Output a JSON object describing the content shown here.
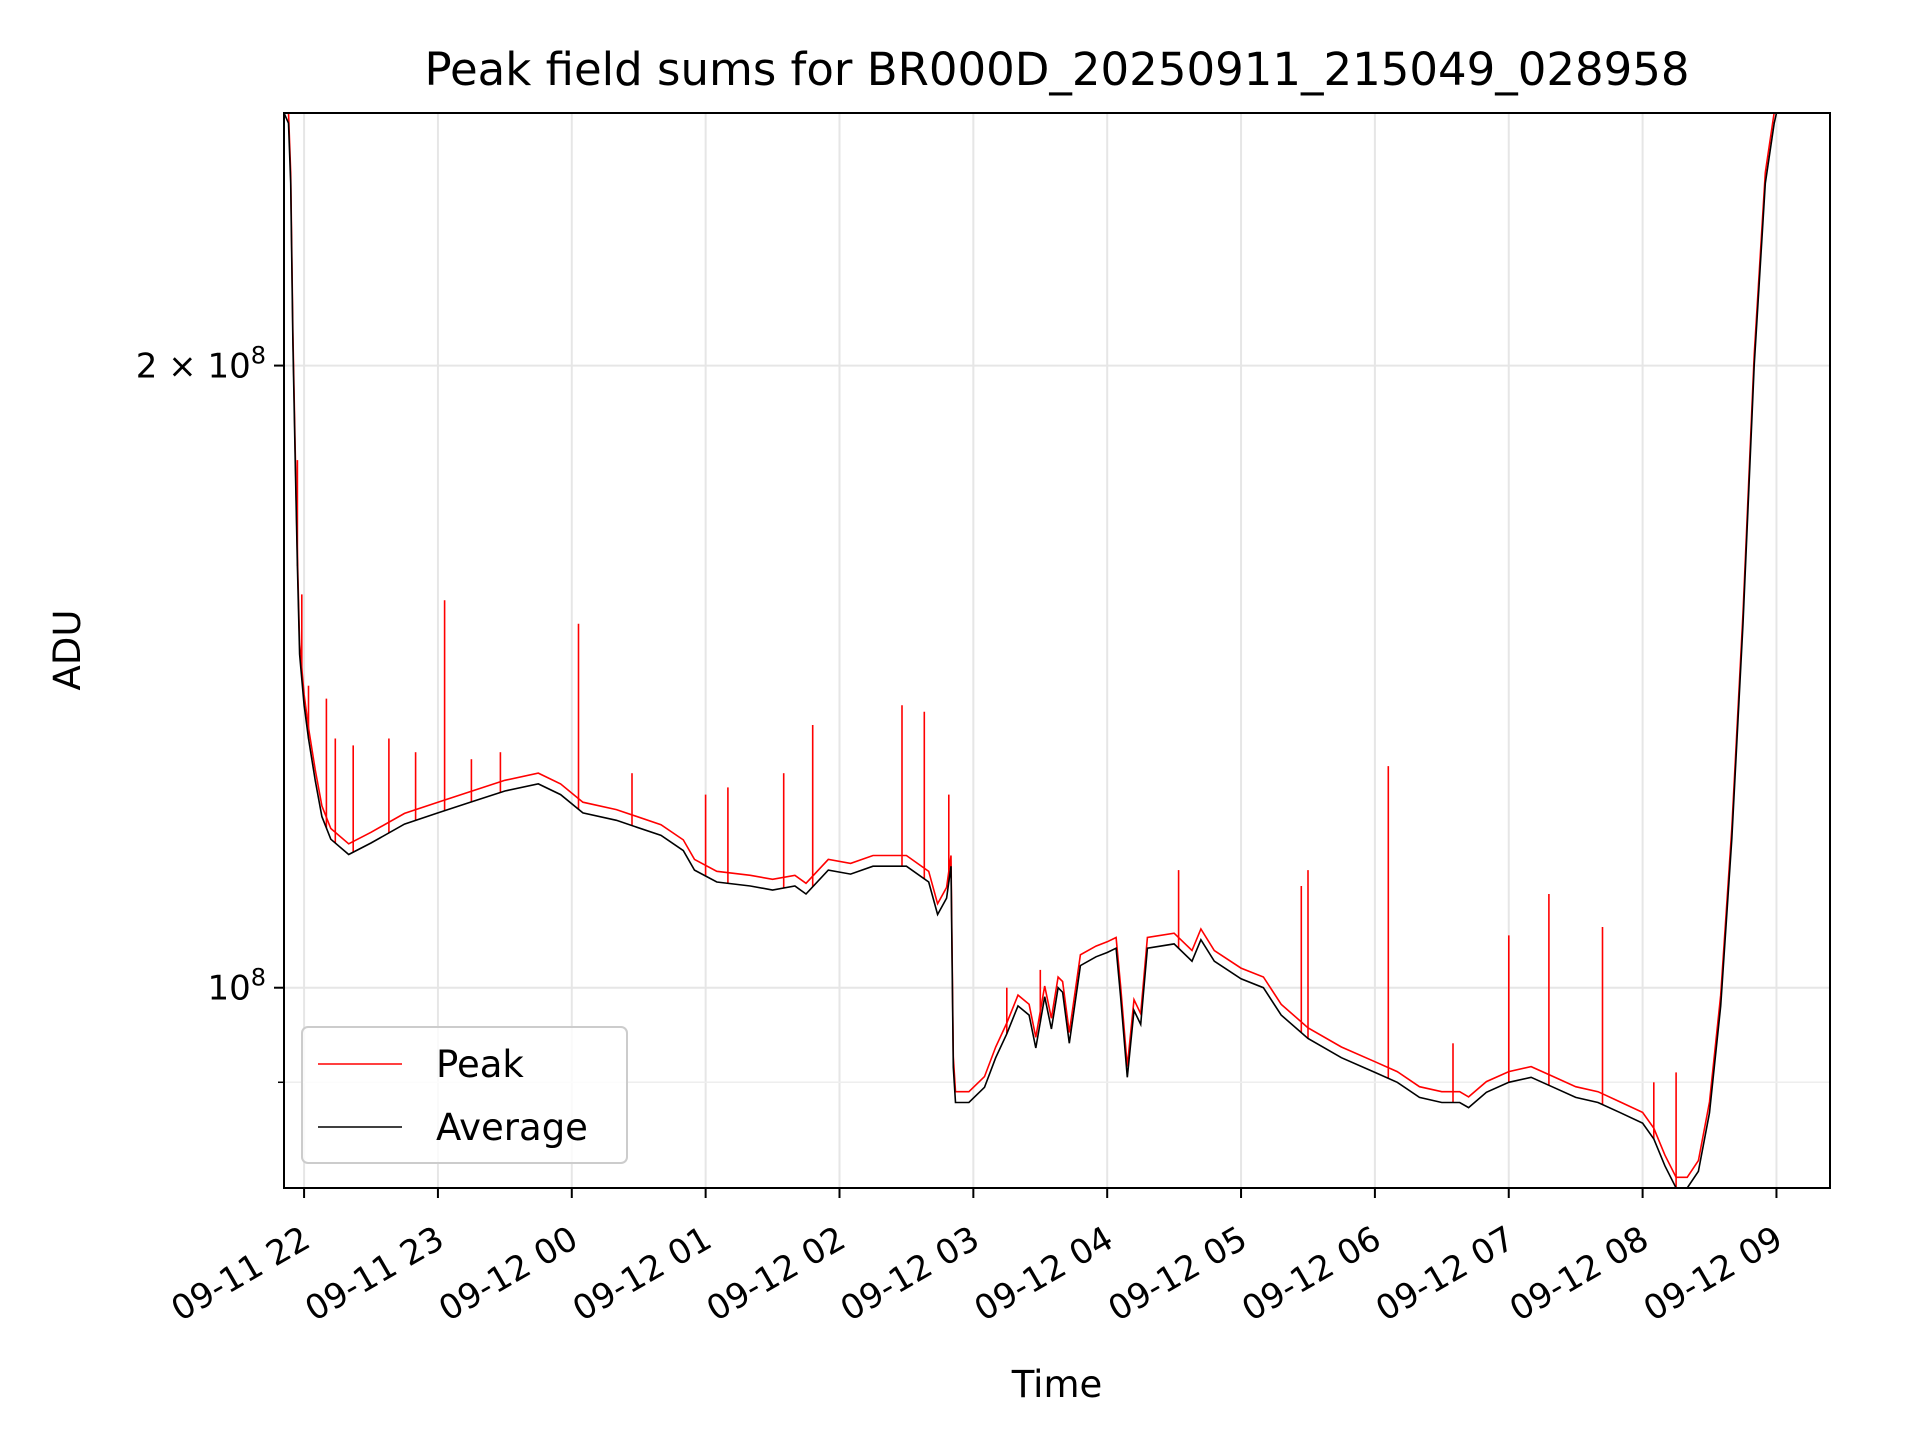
{
  "chart_data": {
    "type": "line",
    "title": "Peak field sums for BR000D_20250911_215049_028958",
    "xlabel": "Time",
    "ylabel": "ADU",
    "yscale": "log",
    "ylim": [
      80000000,
      265000000
    ],
    "xlim": [
      "2025-09-11 21:51",
      "2025-09-12 09:24"
    ],
    "grid": true,
    "legend_position": "lower-left",
    "x_ticks": [
      {
        "t": "2025-09-11 22:00",
        "label": "09-11 22"
      },
      {
        "t": "2025-09-11 23:00",
        "label": "09-11 23"
      },
      {
        "t": "2025-09-12 00:00",
        "label": "09-12 00"
      },
      {
        "t": "2025-09-12 01:00",
        "label": "09-12 01"
      },
      {
        "t": "2025-09-12 02:00",
        "label": "09-12 02"
      },
      {
        "t": "2025-09-12 03:00",
        "label": "09-12 03"
      },
      {
        "t": "2025-09-12 04:00",
        "label": "09-12 04"
      },
      {
        "t": "2025-09-12 05:00",
        "label": "09-12 05"
      },
      {
        "t": "2025-09-12 06:00",
        "label": "09-12 06"
      },
      {
        "t": "2025-09-12 07:00",
        "label": "09-12 07"
      },
      {
        "t": "2025-09-12 08:00",
        "label": "09-12 08"
      },
      {
        "t": "2025-09-12 09:00",
        "label": "09-12 09"
      }
    ],
    "y_ticks_major": [
      {
        "value": 100000000,
        "label_base": "10",
        "label_exp": "8",
        "label_coef": ""
      },
      {
        "value": 200000000,
        "label_base": "2 × 10",
        "label_exp": "8",
        "label_coef": ""
      }
    ],
    "y_ticks_minor": [
      90000000
    ],
    "series": [
      {
        "name": "Average",
        "color": "#000000",
        "points": [
          [
            "2025-09-11 21:51",
            265000000
          ],
          [
            "2025-09-11 21:53",
            262000000
          ],
          [
            "2025-09-11 21:54",
            245000000
          ],
          [
            "2025-09-11 21:55",
            205000000
          ],
          [
            "2025-09-11 21:56",
            180000000
          ],
          [
            "2025-09-11 21:57",
            160000000
          ],
          [
            "2025-09-11 21:58",
            145000000
          ],
          [
            "2025-09-11 22:00",
            137000000
          ],
          [
            "2025-09-11 22:02",
            132000000
          ],
          [
            "2025-09-11 22:05",
            126000000
          ],
          [
            "2025-09-11 22:08",
            121000000
          ],
          [
            "2025-09-11 22:12",
            118000000
          ],
          [
            "2025-09-11 22:20",
            116000000
          ],
          [
            "2025-09-11 22:30",
            117500000
          ],
          [
            "2025-09-11 22:45",
            120000000
          ],
          [
            "2025-09-11 23:00",
            121500000
          ],
          [
            "2025-09-11 23:15",
            123000000
          ],
          [
            "2025-09-11 23:30",
            124500000
          ],
          [
            "2025-09-11 23:45",
            125500000
          ],
          [
            "2025-09-11 23:55",
            124000000
          ],
          [
            "2025-09-12 00:05",
            121500000
          ],
          [
            "2025-09-12 00:20",
            120500000
          ],
          [
            "2025-09-12 00:40",
            118500000
          ],
          [
            "2025-09-12 00:50",
            116500000
          ],
          [
            "2025-09-12 00:55",
            114000000
          ],
          [
            "2025-09-12 01:05",
            112500000
          ],
          [
            "2025-09-12 01:20",
            112000000
          ],
          [
            "2025-09-12 01:30",
            111500000
          ],
          [
            "2025-09-12 01:40",
            112000000
          ],
          [
            "2025-09-12 01:45",
            111000000
          ],
          [
            "2025-09-12 01:55",
            114000000
          ],
          [
            "2025-09-12 02:05",
            113500000
          ],
          [
            "2025-09-12 02:15",
            114500000
          ],
          [
            "2025-09-12 02:30",
            114500000
          ],
          [
            "2025-09-12 02:40",
            112500000
          ],
          [
            "2025-09-12 02:44",
            108500000
          ],
          [
            "2025-09-12 02:48",
            110500000
          ],
          [
            "2025-09-12 02:50",
            114500000
          ],
          [
            "2025-09-12 02:51",
            91500000
          ],
          [
            "2025-09-12 02:52",
            88000000
          ],
          [
            "2025-09-12 02:58",
            88000000
          ],
          [
            "2025-09-12 03:05",
            89500000
          ],
          [
            "2025-09-12 03:10",
            92500000
          ],
          [
            "2025-09-12 03:15",
            95000000
          ],
          [
            "2025-09-12 03:20",
            98000000
          ],
          [
            "2025-09-12 03:25",
            97000000
          ],
          [
            "2025-09-12 03:28",
            93500000
          ],
          [
            "2025-09-12 03:32",
            99000000
          ],
          [
            "2025-09-12 03:35",
            95500000
          ],
          [
            "2025-09-12 03:38",
            100000000
          ],
          [
            "2025-09-12 03:40",
            99500000
          ],
          [
            "2025-09-12 03:43",
            94000000
          ],
          [
            "2025-09-12 03:48",
            102500000
          ],
          [
            "2025-09-12 03:55",
            103500000
          ],
          [
            "2025-09-12 04:00",
            104000000
          ],
          [
            "2025-09-12 04:04",
            104500000
          ],
          [
            "2025-09-12 04:06",
            99000000
          ],
          [
            "2025-09-12 04:09",
            90500000
          ],
          [
            "2025-09-12 04:12",
            97500000
          ],
          [
            "2025-09-12 04:15",
            96000000
          ],
          [
            "2025-09-12 04:18",
            104500000
          ],
          [
            "2025-09-12 04:30",
            105000000
          ],
          [
            "2025-09-12 04:38",
            103000000
          ],
          [
            "2025-09-12 04:42",
            105500000
          ],
          [
            "2025-09-12 04:48",
            103000000
          ],
          [
            "2025-09-12 05:00",
            101000000
          ],
          [
            "2025-09-12 05:10",
            100000000
          ],
          [
            "2025-09-12 05:18",
            97000000
          ],
          [
            "2025-09-12 05:30",
            94500000
          ],
          [
            "2025-09-12 05:45",
            92500000
          ],
          [
            "2025-09-12 06:00",
            91000000
          ],
          [
            "2025-09-12 06:10",
            90000000
          ],
          [
            "2025-09-12 06:20",
            88500000
          ],
          [
            "2025-09-12 06:30",
            88000000
          ],
          [
            "2025-09-12 06:38",
            88000000
          ],
          [
            "2025-09-12 06:42",
            87500000
          ],
          [
            "2025-09-12 06:50",
            89000000
          ],
          [
            "2025-09-12 07:00",
            90000000
          ],
          [
            "2025-09-12 07:10",
            90500000
          ],
          [
            "2025-09-12 07:20",
            89500000
          ],
          [
            "2025-09-12 07:30",
            88500000
          ],
          [
            "2025-09-12 07:40",
            88000000
          ],
          [
            "2025-09-12 07:50",
            87000000
          ],
          [
            "2025-09-12 08:00",
            86000000
          ],
          [
            "2025-09-12 08:05",
            84500000
          ],
          [
            "2025-09-12 08:10",
            82000000
          ],
          [
            "2025-09-12 08:15",
            80000000
          ],
          [
            "2025-09-12 08:20",
            80000000
          ],
          [
            "2025-09-12 08:25",
            81500000
          ],
          [
            "2025-09-12 08:30",
            87000000
          ],
          [
            "2025-09-12 08:35",
            98000000
          ],
          [
            "2025-09-12 08:40",
            118000000
          ],
          [
            "2025-09-12 08:45",
            150000000
          ],
          [
            "2025-09-12 08:50",
            200000000
          ],
          [
            "2025-09-12 08:55",
            245000000
          ],
          [
            "2025-09-12 08:59",
            262000000
          ],
          [
            "2025-09-12 09:00",
            265000000
          ]
        ]
      },
      {
        "name": "Peak",
        "color": "#ff0000",
        "spikes": [
          [
            "2025-09-11 21:57",
            180000000
          ],
          [
            "2025-09-11 21:59",
            155000000
          ],
          [
            "2025-09-11 22:02",
            140000000
          ],
          [
            "2025-09-11 22:10",
            138000000
          ],
          [
            "2025-09-11 22:14",
            132000000
          ],
          [
            "2025-09-11 22:22",
            131000000
          ],
          [
            "2025-09-11 22:38",
            132000000
          ],
          [
            "2025-09-11 22:50",
            130000000
          ],
          [
            "2025-09-11 23:03",
            154000000
          ],
          [
            "2025-09-11 23:15",
            129000000
          ],
          [
            "2025-09-11 23:28",
            130000000
          ],
          [
            "2025-09-12 00:03",
            150000000
          ],
          [
            "2025-09-12 00:27",
            127000000
          ],
          [
            "2025-09-12 01:00",
            124000000
          ],
          [
            "2025-09-12 01:10",
            125000000
          ],
          [
            "2025-09-12 01:35",
            127000000
          ],
          [
            "2025-09-12 01:48",
            134000000
          ],
          [
            "2025-09-12 02:28",
            137000000
          ],
          [
            "2025-09-12 02:38",
            136000000
          ],
          [
            "2025-09-12 02:49",
            124000000
          ],
          [
            "2025-09-12 03:15",
            100000000
          ],
          [
            "2025-09-12 03:30",
            102000000
          ],
          [
            "2025-09-12 04:32",
            114000000
          ],
          [
            "2025-09-12 05:27",
            112000000
          ],
          [
            "2025-09-12 05:30",
            114000000
          ],
          [
            "2025-09-12 06:06",
            128000000
          ],
          [
            "2025-09-12 06:35",
            94000000
          ],
          [
            "2025-09-12 07:00",
            106000000
          ],
          [
            "2025-09-12 07:18",
            111000000
          ],
          [
            "2025-09-12 07:42",
            107000000
          ],
          [
            "2025-09-12 08:05",
            90000000
          ],
          [
            "2025-09-12 08:15",
            91000000
          ]
        ]
      }
    ]
  }
}
